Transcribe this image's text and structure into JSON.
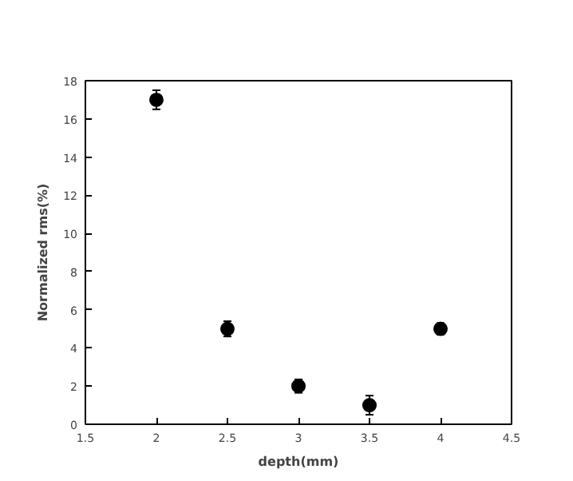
{
  "chart_data": {
    "type": "scatter",
    "xlabel": "depth(mm)",
    "ylabel": "Normalized rms(%)",
    "x": [
      2,
      2.5,
      3,
      3.5,
      4
    ],
    "values": [
      17,
      5,
      2,
      1,
      5
    ],
    "errors": [
      0.5,
      0.4,
      0.35,
      0.5,
      0.3
    ],
    "color": "#000000",
    "marker": "circle",
    "xlim": [
      1.5,
      4.5
    ],
    "xticks": [
      1.5,
      2,
      2.5,
      3,
      3.5,
      4,
      4.5
    ],
    "ylim": [
      0,
      18
    ],
    "yticks": [
      0,
      2,
      4,
      6,
      8,
      10,
      12,
      14,
      16,
      18
    ],
    "grid": false
  }
}
